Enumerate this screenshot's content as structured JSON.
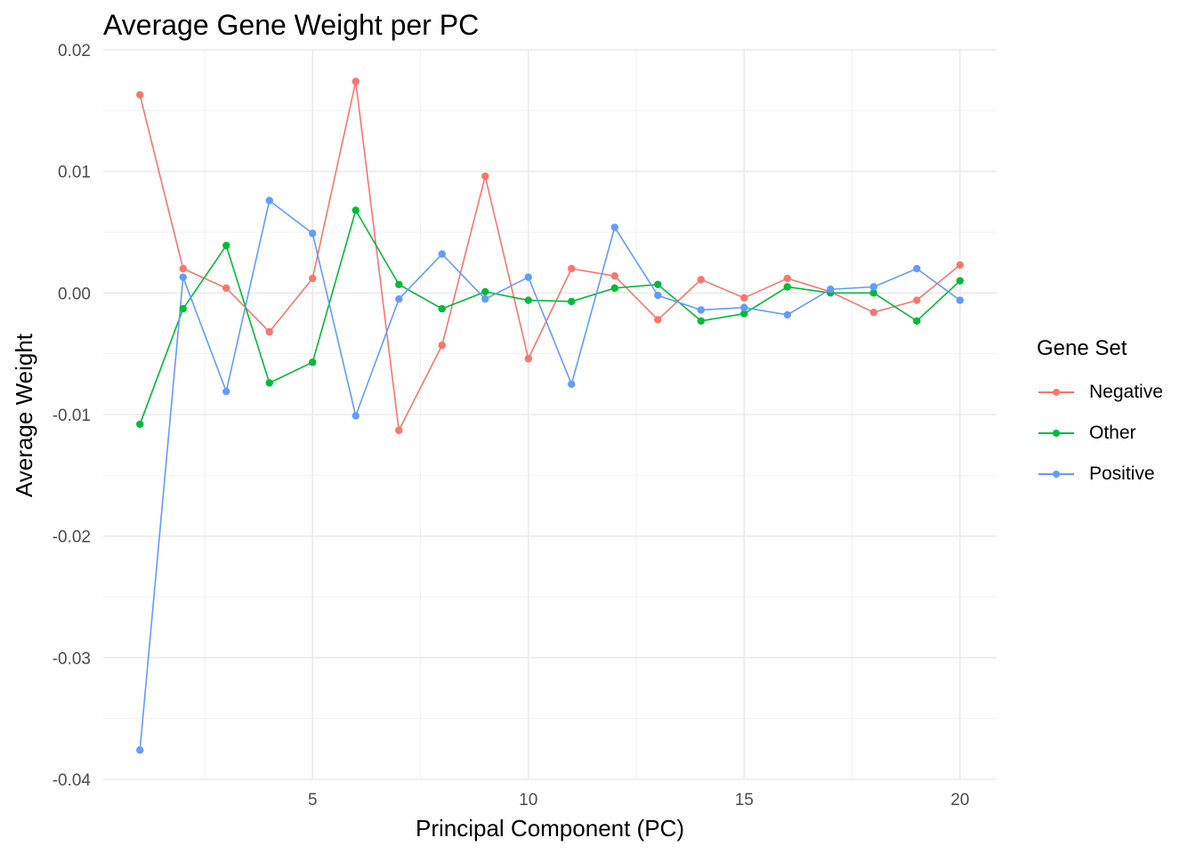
{
  "chart_data": {
    "type": "line",
    "title": "Average Gene Weight per PC",
    "xlabel": "Principal Component (PC)",
    "ylabel": "Average Weight",
    "x": [
      1,
      2,
      3,
      4,
      5,
      6,
      7,
      8,
      9,
      10,
      11,
      12,
      13,
      14,
      15,
      16,
      17,
      18,
      19,
      20
    ],
    "xlim": [
      0.15,
      20.85
    ],
    "ylim": [
      -0.04,
      0.02
    ],
    "x_ticks": [
      5,
      10,
      15,
      20
    ],
    "x_tick_labels": [
      "5",
      "10",
      "15",
      "20"
    ],
    "y_ticks": [
      -0.04,
      -0.03,
      -0.02,
      -0.01,
      0.0,
      0.01,
      0.02
    ],
    "y_tick_labels": [
      "-0.04",
      "-0.03",
      "-0.02",
      "-0.01",
      "0.00",
      "0.01",
      "0.02"
    ],
    "grid": true,
    "legend_title": "Gene Set",
    "legend_position": "right",
    "series": [
      {
        "name": "Negative",
        "color": "#F8766D",
        "values": [
          0.0163,
          0.002,
          0.0004,
          -0.0032,
          0.0012,
          0.0174,
          -0.0113,
          -0.0043,
          0.0096,
          -0.0054,
          0.002,
          0.0014,
          -0.0022,
          0.0011,
          -0.0004,
          0.0012,
          0.0001,
          -0.0016,
          -0.0006,
          0.0023
        ]
      },
      {
        "name": "Other",
        "color": "#00BA38",
        "values": [
          -0.0108,
          -0.0013,
          0.0039,
          -0.0074,
          -0.0057,
          0.0068,
          0.0007,
          -0.0013,
          0.0001,
          -0.0006,
          -0.0007,
          0.0004,
          0.0007,
          -0.0023,
          -0.0017,
          0.0005,
          0.0,
          0.0,
          -0.0023,
          0.001
        ]
      },
      {
        "name": "Positive",
        "color": "#619CFF",
        "values": [
          -0.0376,
          0.0013,
          -0.0081,
          0.0076,
          0.0049,
          -0.0101,
          -0.0005,
          0.0032,
          -0.0005,
          0.0013,
          -0.0075,
          0.0054,
          -0.0002,
          -0.0014,
          -0.0012,
          -0.0018,
          0.0003,
          0.0005,
          0.002,
          -0.0006
        ]
      }
    ]
  }
}
